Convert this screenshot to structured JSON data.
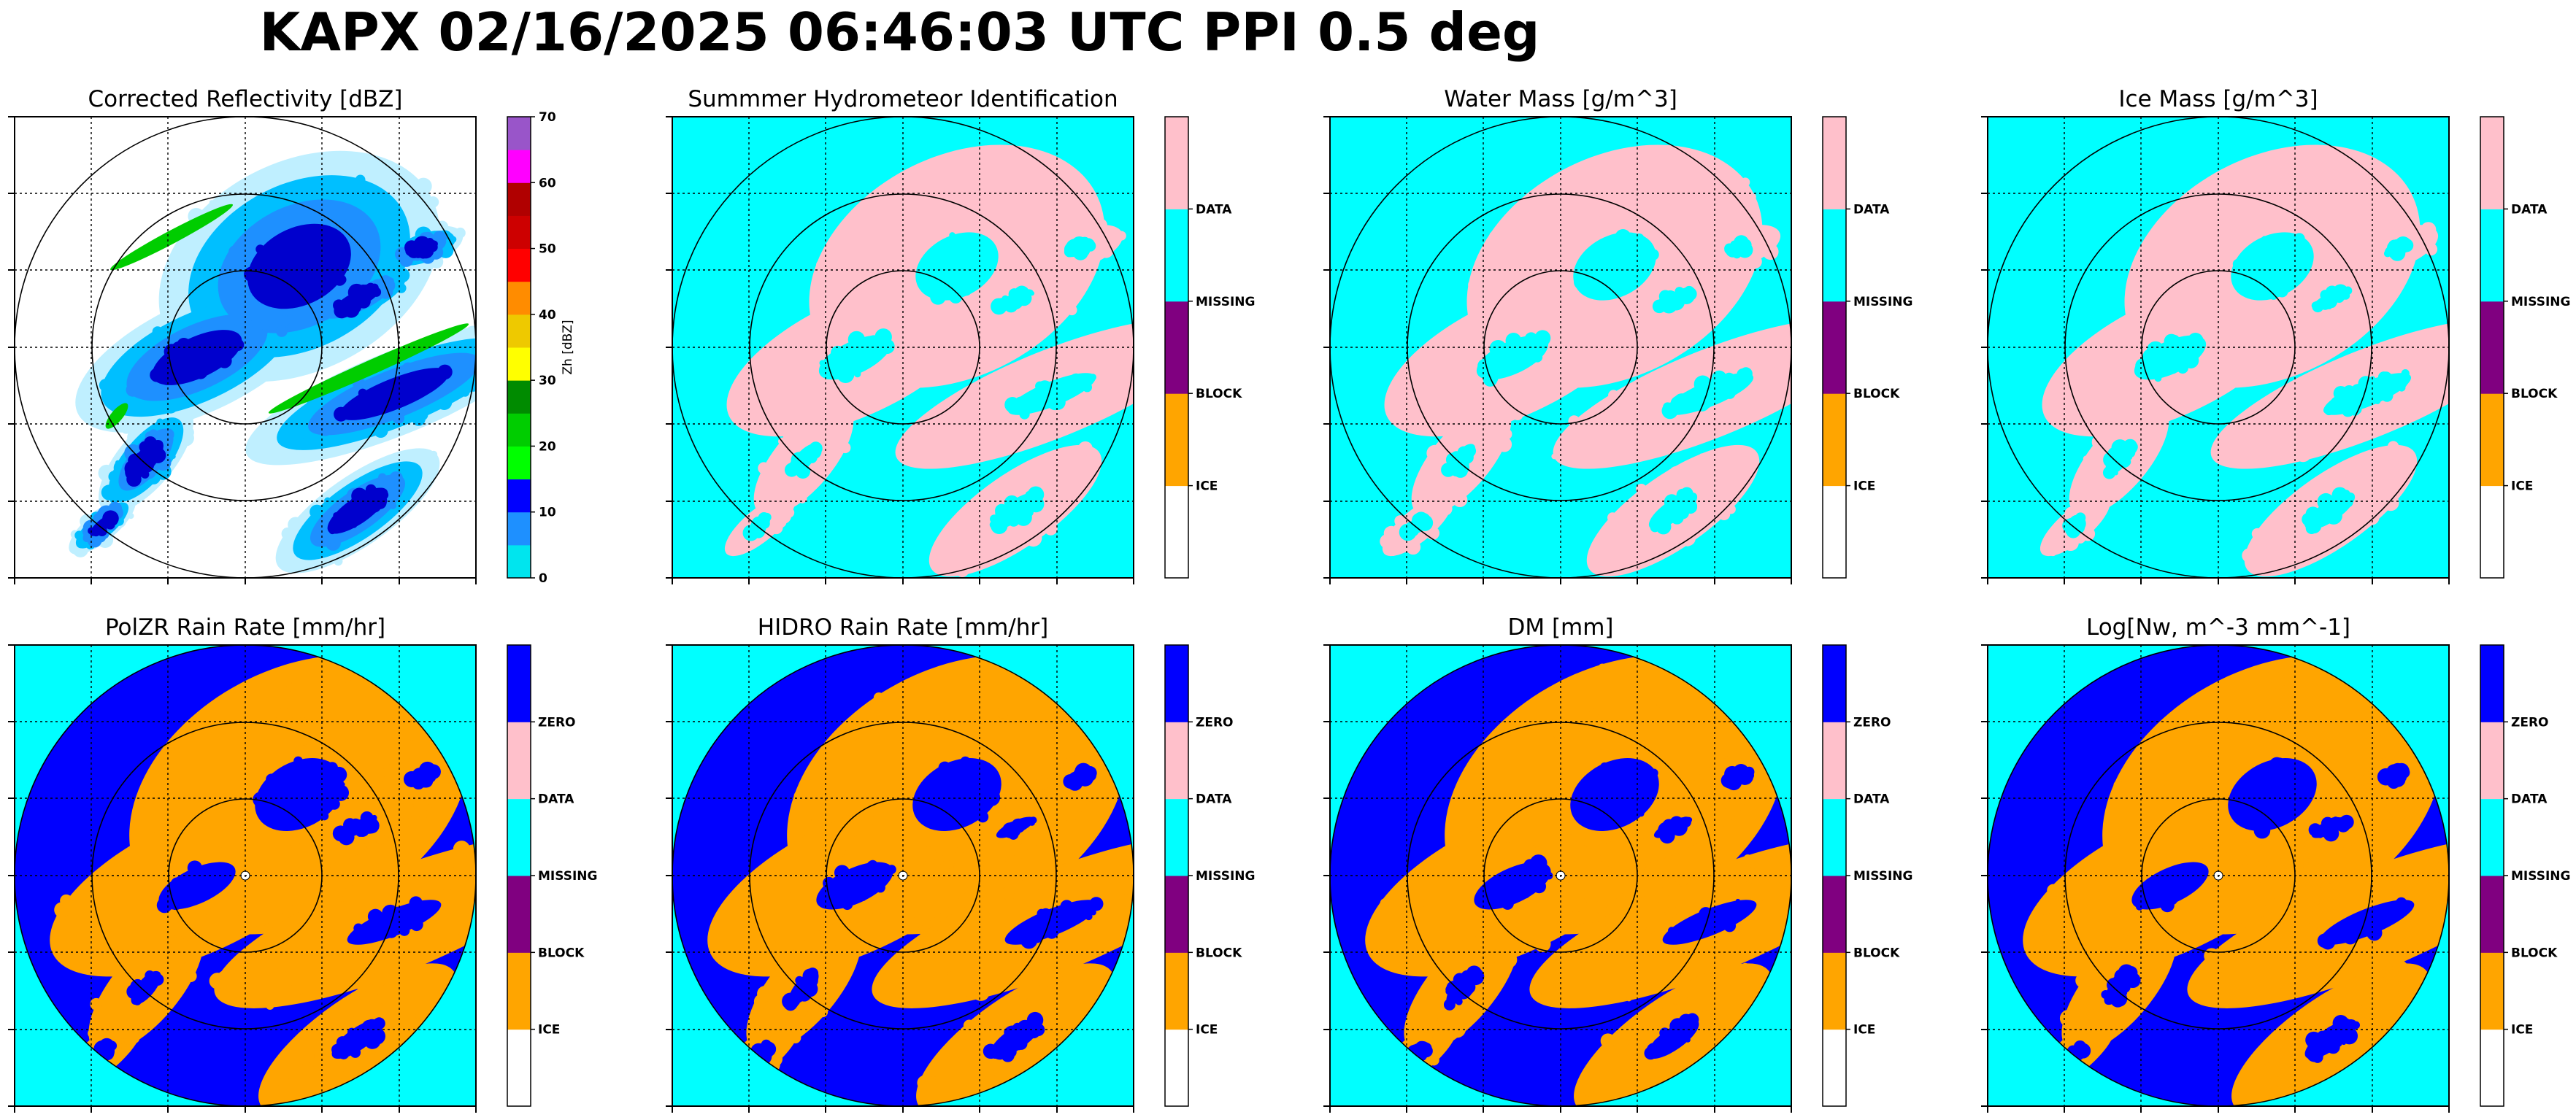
{
  "title": "KAPX 02/16/2025 06:46:03 UTC PPI 0.5 deg",
  "colors": {
    "cyan": "#00ffff",
    "pink": "#ffc0cb",
    "blue": "#0000ff",
    "orange": "#ffa500",
    "purple": "#800080",
    "white": "#ffffff"
  },
  "chart_data": [
    {
      "type": "heatmap",
      "title": "Corrected Reflectivity [dBZ]",
      "colorbar": {
        "label": "Zh [dBZ]",
        "range": [
          0,
          70
        ],
        "ticks": [
          "0",
          "10",
          "20",
          "30",
          "40",
          "50",
          "60",
          "70"
        ],
        "colors": [
          "#00e5ee",
          "#1e90ff",
          "#0000ff",
          "#00ff00",
          "#00cd00",
          "#008b00",
          "#ffff00",
          "#eec900",
          "#ff8c00",
          "#ff0000",
          "#cd0000",
          "#b00000",
          "#ff00ff",
          "#9955c9"
        ]
      },
      "range_rings": 3,
      "grid": true
    },
    {
      "type": "heatmap",
      "title": "Summmer Hydrometeor Identification",
      "colorbar": {
        "categories": [
          "ICE",
          "BLOCK",
          "MISSING",
          "DATA"
        ],
        "colors": [
          "#ffffff",
          "#ffa500",
          "#800080",
          "#00ffff",
          "#ffc0cb"
        ]
      },
      "range_rings": 3,
      "grid": true
    },
    {
      "type": "heatmap",
      "title": "Water Mass [g/m^3]",
      "colorbar": {
        "categories": [
          "ICE",
          "BLOCK",
          "MISSING",
          "DATA"
        ],
        "colors": [
          "#ffffff",
          "#ffa500",
          "#800080",
          "#00ffff",
          "#ffc0cb"
        ]
      },
      "range_rings": 3,
      "grid": true
    },
    {
      "type": "heatmap",
      "title": "Ice Mass [g/m^3]",
      "colorbar": {
        "categories": [
          "ICE",
          "BLOCK",
          "MISSING",
          "DATA"
        ],
        "colors": [
          "#ffffff",
          "#ffa500",
          "#800080",
          "#00ffff",
          "#ffc0cb"
        ]
      },
      "range_rings": 3,
      "grid": true
    },
    {
      "type": "heatmap",
      "title": "PolZR Rain Rate [mm/hr]",
      "colorbar": {
        "categories": [
          "ICE",
          "BLOCK",
          "MISSING",
          "DATA",
          "ZERO"
        ],
        "colors": [
          "#ffffff",
          "#ffa500",
          "#800080",
          "#00ffff",
          "#ffc0cb",
          "#0000ff"
        ]
      },
      "range_rings": 3,
      "grid": true
    },
    {
      "type": "heatmap",
      "title": "HIDRO Rain Rate [mm/hr]",
      "colorbar": {
        "categories": [
          "ICE",
          "BLOCK",
          "MISSING",
          "DATA",
          "ZERO"
        ],
        "colors": [
          "#ffffff",
          "#ffa500",
          "#800080",
          "#00ffff",
          "#ffc0cb",
          "#0000ff"
        ]
      },
      "range_rings": 3,
      "grid": true
    },
    {
      "type": "heatmap",
      "title": "DM [mm]",
      "colorbar": {
        "categories": [
          "ICE",
          "BLOCK",
          "MISSING",
          "DATA",
          "ZERO"
        ],
        "colors": [
          "#ffffff",
          "#ffa500",
          "#800080",
          "#00ffff",
          "#ffc0cb",
          "#0000ff"
        ]
      },
      "range_rings": 3,
      "grid": true
    },
    {
      "type": "heatmap",
      "title": "Log[Nw, m^-3 mm^-1]",
      "colorbar": {
        "categories": [
          "ICE",
          "BLOCK",
          "MISSING",
          "DATA",
          "ZERO"
        ],
        "colors": [
          "#ffffff",
          "#ffa500",
          "#800080",
          "#00ffff",
          "#ffc0cb",
          "#0000ff"
        ]
      },
      "range_rings": 3,
      "grid": true
    }
  ]
}
